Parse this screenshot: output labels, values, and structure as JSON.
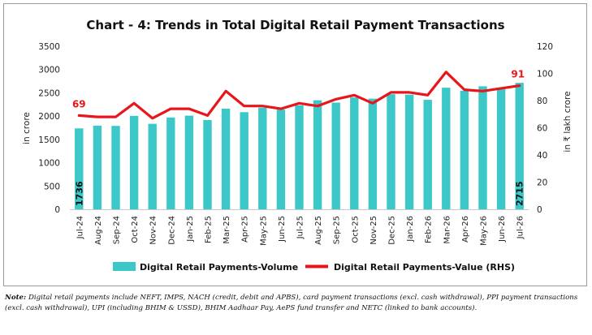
{
  "chart_data": {
    "type": "bar+line",
    "title": "Chart - 4: Trends in Total Digital Retail Payment Transactions",
    "categories": [
      "Jul-24",
      "Aug-24",
      "Sep-24",
      "Oct-24",
      "Nov-24",
      "Dec-24",
      "Jan-25",
      "Feb-25",
      "Mar-25",
      "Apr-25",
      "May-25",
      "Jun-25",
      "Jul-25",
      "Aug-25",
      "Sep-25",
      "Oct-25",
      "Nov-25",
      "Dec-25",
      "Jan-26",
      "Feb-26",
      "Mar-26",
      "Apr-26",
      "May-26",
      "Jun-26",
      "Jul-26"
    ],
    "series": [
      {
        "name": "Digital Retail Payments-Volume",
        "type": "bar",
        "axis": "left",
        "color": "#3cc8c8",
        "values": [
          1736,
          1795,
          1790,
          2005,
          1835,
          1970,
          2010,
          1915,
          2160,
          2085,
          2180,
          2140,
          2230,
          2340,
          2290,
          2400,
          2375,
          2470,
          2460,
          2350,
          2610,
          2545,
          2640,
          2610,
          2715
        ]
      },
      {
        "name": "Digital Retail Payments-Value (RHS)",
        "type": "line",
        "axis": "right",
        "color": "#e8161b",
        "values": [
          69,
          68,
          68,
          78,
          67,
          74,
          74,
          69,
          87,
          76,
          76,
          74,
          78,
          76,
          81,
          84,
          78,
          86,
          86,
          84,
          101,
          88,
          87,
          89,
          91
        ]
      }
    ],
    "data_labels": {
      "first_bar": "1736",
      "last_bar": "2715",
      "first_line": "69",
      "last_line": "91"
    },
    "ylabel": "in crore",
    "y2label": "in ₹ lakh crore",
    "ylim": [
      0,
      3500
    ],
    "y2lim": [
      0,
      120
    ],
    "yticks": [
      "0",
      "500",
      "1000",
      "1500",
      "2000",
      "2500",
      "3000",
      "3500"
    ],
    "y2ticks": [
      "0",
      "20",
      "40",
      "60",
      "80",
      "100",
      "120"
    ],
    "legend_position": "bottom",
    "grid": false
  },
  "note": {
    "label": "Note:",
    "text": "Digital retail payments include NEFT, IMPS, NACH (credit, debit and APBS), card payment transactions (excl. cash withdrawal), PPI payment transactions (excl. cash withdrawal), UPI (including BHIM & USSD), BHIM Aadhaar Pay, AePS fund transfer and NETC (linked to bank accounts)."
  }
}
